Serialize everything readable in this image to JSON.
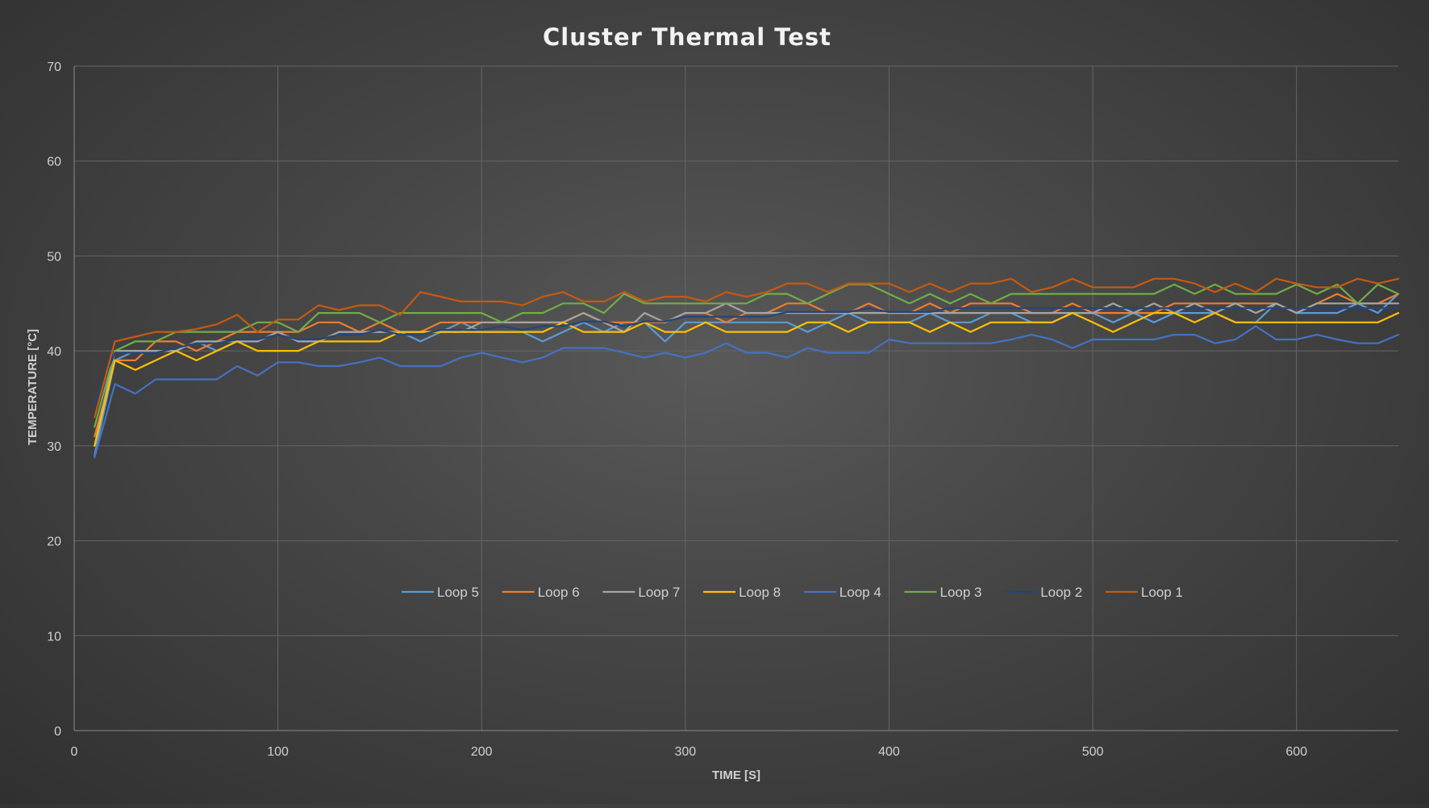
{
  "chart_data": {
    "type": "line",
    "title": "Cluster Thermal Test",
    "xlabel": "TIME [S]",
    "ylabel": "TEMPERATURE [°C]",
    "xlim": [
      0,
      650
    ],
    "ylim": [
      0,
      70
    ],
    "xticks": [
      0,
      100,
      200,
      300,
      400,
      500,
      600
    ],
    "yticks": [
      0,
      10,
      20,
      30,
      40,
      50,
      60,
      70
    ],
    "grid": true,
    "legend_position": "center",
    "x": [
      10,
      20,
      30,
      40,
      50,
      60,
      70,
      80,
      90,
      100,
      110,
      120,
      130,
      140,
      150,
      160,
      170,
      180,
      190,
      200,
      210,
      220,
      230,
      240,
      250,
      260,
      270,
      280,
      290,
      300,
      310,
      320,
      330,
      340,
      350,
      360,
      370,
      380,
      390,
      400,
      410,
      420,
      430,
      440,
      450,
      460,
      470,
      480,
      490,
      500,
      510,
      520,
      530,
      540,
      550,
      560,
      570,
      580,
      590,
      600,
      610,
      620,
      630,
      640,
      650
    ],
    "series": [
      {
        "name": "Loop 5",
        "color": "#5b9bd5",
        "values": [
          29,
          39,
          40,
          40,
          40,
          41,
          40,
          41,
          41,
          42,
          41,
          41,
          42,
          42,
          42,
          42,
          41,
          42,
          43,
          42,
          42,
          42,
          41,
          42,
          43,
          42,
          43,
          43,
          41,
          43,
          43,
          43,
          43,
          43,
          43,
          42,
          43,
          44,
          43,
          43,
          43,
          44,
          43,
          43,
          44,
          44,
          43,
          43,
          44,
          44,
          43,
          44,
          43,
          44,
          44,
          44,
          43,
          43,
          45,
          44,
          44,
          44,
          45,
          44,
          46
        ]
      },
      {
        "name": "Loop 6",
        "color": "#ed7d31",
        "values": [
          31,
          39,
          39,
          41,
          41,
          40,
          41,
          42,
          42,
          42,
          42,
          43,
          43,
          42,
          43,
          42,
          42,
          43,
          43,
          43,
          43,
          43,
          43,
          43,
          44,
          43,
          43,
          43,
          43,
          44,
          44,
          43,
          44,
          44,
          45,
          45,
          44,
          44,
          45,
          44,
          44,
          45,
          44,
          45,
          45,
          45,
          44,
          44,
          45,
          44,
          44,
          44,
          44,
          45,
          45,
          45,
          45,
          45,
          45,
          44,
          45,
          46,
          45,
          45,
          46
        ]
      },
      {
        "name": "Loop 7",
        "color": "#a5a5a5",
        "values": [
          30,
          40,
          40,
          40,
          40,
          41,
          41,
          41,
          41,
          42,
          41,
          41,
          42,
          42,
          42,
          42,
          42,
          42,
          42,
          43,
          43,
          43,
          43,
          43,
          44,
          43,
          42,
          44,
          43,
          44,
          44,
          45,
          44,
          44,
          44,
          44,
          44,
          44,
          44,
          44,
          44,
          44,
          44,
          44,
          44,
          44,
          44,
          44,
          44,
          44,
          45,
          44,
          45,
          44,
          45,
          44,
          45,
          44,
          45,
          44,
          45,
          45,
          45,
          45,
          45
        ]
      },
      {
        "name": "Loop 8",
        "color": "#ffc000",
        "values": [
          30,
          39,
          38,
          39,
          40,
          39,
          40,
          41,
          40,
          40,
          40,
          41,
          41,
          41,
          41,
          42,
          42,
          42,
          42,
          42,
          42,
          42,
          42,
          43,
          42,
          42,
          42,
          43,
          42,
          42,
          43,
          42,
          42,
          42,
          42,
          43,
          43,
          42,
          43,
          43,
          43,
          42,
          43,
          42,
          43,
          43,
          43,
          43,
          44,
          43,
          42,
          43,
          44,
          44,
          43,
          44,
          43,
          43,
          43,
          43,
          43,
          43,
          43,
          43,
          44
        ]
      },
      {
        "name": "Loop 4",
        "color": "#4472c4",
        "values": [
          28.8,
          36.5,
          35.5,
          37,
          37,
          37,
          37,
          38.4,
          37.4,
          38.8,
          38.8,
          38.4,
          38.4,
          38.8,
          39.3,
          38.4,
          38.4,
          38.4,
          39.3,
          39.8,
          39.3,
          38.8,
          39.3,
          40.3,
          40.3,
          40.3,
          39.8,
          39.3,
          39.8,
          39.3,
          39.8,
          40.8,
          39.8,
          39.8,
          39.3,
          40.3,
          39.8,
          39.8,
          39.8,
          41.2,
          40.8,
          40.8,
          40.8,
          40.8,
          40.8,
          41.2,
          41.7,
          41.2,
          40.3,
          41.2,
          41.2,
          41.2,
          41.2,
          41.7,
          41.7,
          40.8,
          41.2,
          42.6,
          41.2,
          41.2,
          41.7,
          41.2,
          40.8,
          40.8,
          41.7
        ]
      },
      {
        "name": "Loop 3",
        "color": "#70ad47",
        "values": [
          32,
          40,
          41,
          41,
          42,
          42,
          42,
          42,
          43,
          43,
          42,
          44,
          44,
          44,
          43,
          44,
          44,
          44,
          44,
          44,
          43,
          44,
          44,
          45,
          45,
          44,
          46,
          45,
          45,
          45,
          45,
          45,
          45,
          46,
          46,
          45,
          46,
          47,
          47,
          46,
          45,
          46,
          45,
          46,
          45,
          46,
          46,
          46,
          46,
          46,
          46,
          46,
          46,
          47,
          46,
          47,
          46,
          46,
          46,
          47,
          46,
          47,
          45,
          47,
          46
        ]
      },
      {
        "name": "Loop 2",
        "color": "#264478",
        "values": [
          34.5,
          39.8,
          39.8,
          39.8,
          40.3,
          40.8,
          40.8,
          41.2,
          41.2,
          41.7,
          41.2,
          41.2,
          41.7,
          41.7,
          42.2,
          41.7,
          41.7,
          42.2,
          42.2,
          42.2,
          42.6,
          42.2,
          42.6,
          42.6,
          43.1,
          43.1,
          42.6,
          43.1,
          43.1,
          43.6,
          43.6,
          43.6,
          43.6,
          43.6,
          44.1,
          44.1,
          44.1,
          44.1,
          44.5,
          44.1,
          44.1,
          44.1,
          44.5,
          44.5,
          44.5,
          44.5,
          44.5,
          44.5,
          44.5,
          44.5,
          44.5,
          44.5,
          44.5,
          44.5,
          44.5,
          44.5,
          44.5,
          44.5,
          44.5,
          44.5,
          44.5,
          44.5,
          44.5,
          44.5,
          44.5
        ]
      },
      {
        "name": "Loop 1",
        "color": "#c55a11",
        "values": [
          33,
          41,
          41.5,
          42,
          42,
          42.3,
          42.8,
          43.8,
          42,
          43.3,
          43.3,
          44.8,
          44.3,
          44.8,
          44.8,
          43.8,
          46.2,
          45.7,
          45.2,
          45.2,
          45.2,
          44.8,
          45.7,
          46.2,
          45.2,
          45.2,
          46.2,
          45.2,
          45.7,
          45.7,
          45.2,
          46.2,
          45.7,
          46.2,
          47.1,
          47.1,
          46.2,
          47.1,
          47.1,
          47.1,
          46.2,
          47.1,
          46.2,
          47.1,
          47.1,
          47.6,
          46.2,
          46.7,
          47.6,
          46.7,
          46.7,
          46.7,
          47.6,
          47.6,
          47.1,
          46.2,
          47.1,
          46.2,
          47.6,
          47.1,
          46.7,
          46.7,
          47.6,
          47.1,
          47.6
        ]
      }
    ]
  }
}
